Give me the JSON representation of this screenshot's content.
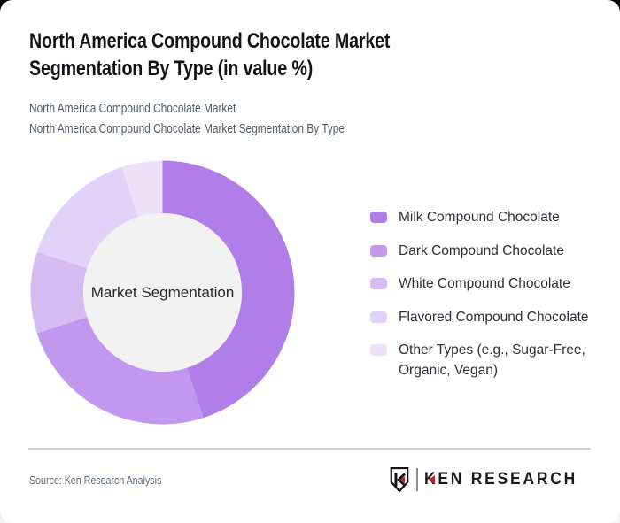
{
  "page": {
    "title": "North America Compound Chocolate Market Segmentation By Type (in value %)",
    "subtitle_line1": "North America Compound Chocolate Market",
    "subtitle_line2": "North America Compound Chocolate Market Segmentation By Type"
  },
  "chart_data": {
    "type": "pie",
    "donut": true,
    "title": "North America Compound Chocolate Market Segmentation By Type (in value %)",
    "center_label": "Market Segmentation",
    "categories": [
      "Milk Compound Chocolate",
      "Dark Compound Chocolate",
      "White Compound Chocolate",
      "Flavored Compound Chocolate",
      "Other Types (e.g., Sugar-Free, Organic, Vegan)"
    ],
    "values": [
      45,
      25,
      10,
      15,
      5
    ],
    "unit": "%",
    "colors": [
      "#b07de9",
      "#c298ee",
      "#d7bcf3",
      "#e3d2f7",
      "#ede1fa"
    ],
    "inner_circle_color": "#f2f2f2",
    "start_angle_deg": 0,
    "direction": "clockwise",
    "legend_position": "right",
    "data_labels_shown": false
  },
  "footer": {
    "source": "Source: Ken Research Analysis",
    "brand": "KEN RESEARCH",
    "brand_badge_letter": "K",
    "brand_red": "#c4232b"
  }
}
